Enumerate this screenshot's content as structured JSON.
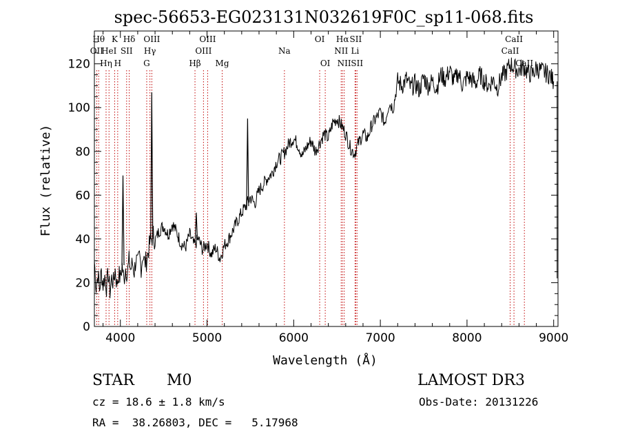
{
  "colors": {
    "spectrum": "#000000",
    "line_marker": "#c00000",
    "axes": "#000000"
  },
  "chart_data": {
    "type": "line",
    "title": "spec-56653-EG023131N032619F0C_sp11-068.fits",
    "xlabel": "Wavelength (Å)",
    "ylabel": "Flux (relative)",
    "xlim": [
      3700,
      9050
    ],
    "ylim": [
      0,
      135
    ],
    "xticks": [
      4000,
      5000,
      6000,
      7000,
      8000,
      9000
    ],
    "yticks": [
      0,
      20,
      40,
      60,
      80,
      100,
      120
    ],
    "series": [
      {
        "name": "spectrum",
        "x": [
          3700,
          3720,
          3740,
          3760,
          3780,
          3800,
          3820,
          3840,
          3860,
          3880,
          3900,
          3920,
          3940,
          3960,
          3980,
          4000,
          4020,
          4040,
          4060,
          4080,
          4100,
          4120,
          4140,
          4160,
          4180,
          4200,
          4220,
          4240,
          4260,
          4280,
          4300,
          4320,
          4340,
          4360,
          4380,
          4400,
          4450,
          4500,
          4550,
          4600,
          4650,
          4700,
          4750,
          4800,
          4850,
          4900,
          4950,
          5000,
          5050,
          5100,
          5150,
          5200,
          5250,
          5300,
          5350,
          5400,
          5450,
          5500,
          5550,
          5600,
          5650,
          5700,
          5750,
          5800,
          5850,
          5900,
          5950,
          6000,
          6050,
          6100,
          6150,
          6200,
          6250,
          6300,
          6350,
          6400,
          6450,
          6500,
          6550,
          6600,
          6650,
          6700,
          6750,
          6800,
          6850,
          6900,
          6950,
          7000,
          7050,
          7100,
          7150,
          7200,
          7250,
          7300,
          7350,
          7400,
          7450,
          7500,
          7550,
          7600,
          7650,
          7700,
          7750,
          7800,
          7850,
          7900,
          7950,
          8000,
          8050,
          8100,
          8150,
          8200,
          8250,
          8300,
          8350,
          8400,
          8450,
          8500,
          8550,
          8600,
          8650,
          8700,
          8750,
          8800,
          8850,
          8900,
          8950,
          9000
        ],
        "y": [
          30,
          18,
          24,
          17,
          25,
          19,
          23,
          18,
          24,
          16,
          22,
          20,
          26,
          19,
          24,
          22,
          28,
          21,
          27,
          24,
          30,
          26,
          29,
          25,
          31,
          28,
          32,
          27,
          33,
          29,
          30,
          34,
          38,
          40,
          42,
          39,
          44,
          46,
          42,
          47,
          43,
          38,
          36,
          42,
          37,
          40,
          35,
          38,
          33,
          36,
          31,
          37,
          40,
          44,
          48,
          52,
          55,
          59,
          56,
          62,
          65,
          68,
          70,
          75,
          77,
          80,
          84,
          86,
          83,
          78,
          82,
          85,
          80,
          84,
          88,
          86,
          93,
          95,
          92,
          88,
          82,
          79,
          84,
          88,
          86,
          92,
          95,
          98,
          93,
          102,
          100,
          112,
          110,
          113,
          109,
          111,
          108,
          114,
          110,
          112,
          109,
          115,
          113,
          117,
          112,
          116,
          110,
          114,
          113,
          111,
          115,
          112,
          110,
          113,
          109,
          114,
          116,
          120,
          118,
          117,
          119,
          116,
          115,
          118,
          117,
          116,
          115,
          112
        ]
      }
    ],
    "spikes": [
      {
        "x": 4362,
        "peak": 107,
        "base": 40
      },
      {
        "x": 4030,
        "peak": 69,
        "base": 28
      },
      {
        "x": 5468,
        "peak": 95,
        "base": 55
      },
      {
        "x": 4876,
        "peak": 52,
        "base": 40
      }
    ],
    "line_markers": [
      {
        "x": 3727,
        "label": "OII",
        "row": 2
      },
      {
        "x": 3750,
        "label": "Hθ",
        "row": 1
      },
      {
        "x": 3835,
        "label": "Hη",
        "row": 3
      },
      {
        "x": 3869,
        "label": "HeI",
        "row": 2
      },
      {
        "x": 3934,
        "label": "K",
        "row": 1
      },
      {
        "x": 3969,
        "label": "H",
        "row": 3
      },
      {
        "x": 4072,
        "label": "SII",
        "row": 2
      },
      {
        "x": 4102,
        "label": "Hδ",
        "row": 1
      },
      {
        "x": 4304,
        "label": "G",
        "row": 3
      },
      {
        "x": 4341,
        "label": "Hγ",
        "row": 2
      },
      {
        "x": 4363,
        "label": "OIII",
        "row": 1
      },
      {
        "x": 4861,
        "label": "Hβ",
        "row": 3
      },
      {
        "x": 4959,
        "label": "OIII",
        "row": 2
      },
      {
        "x": 5007,
        "label": "OIII",
        "row": 1
      },
      {
        "x": 5175,
        "label": "Mg",
        "row": 3
      },
      {
        "x": 5893,
        "label": "Na",
        "row": 2
      },
      {
        "x": 6300,
        "label": "OI",
        "row": 1
      },
      {
        "x": 6364,
        "label": "OI",
        "row": 3
      },
      {
        "x": 6548,
        "label": "NII",
        "row": 2
      },
      {
        "x": 6563,
        "label": "Hα",
        "row": 1
      },
      {
        "x": 6583,
        "label": "NII",
        "row": 3
      },
      {
        "x": 6708,
        "label": "Li",
        "row": 2
      },
      {
        "x": 6716,
        "label": "SII",
        "row": 1
      },
      {
        "x": 6731,
        "label": "SII",
        "row": 3
      },
      {
        "x": 8498,
        "label": "CaII",
        "row": 2
      },
      {
        "x": 8542,
        "label": "CaII",
        "row": 1
      },
      {
        "x": 8662,
        "label": "CaII",
        "row": 3
      }
    ]
  },
  "info": {
    "object_class": "STAR",
    "subclass": "M0",
    "survey": "LAMOST DR3",
    "cz_text": "cz = 18.6 ± 1.8 km/s",
    "obs_date_text": "Obs-Date: 20131226",
    "coords_text": "RA =  38.26803, DEC =   5.17968"
  }
}
